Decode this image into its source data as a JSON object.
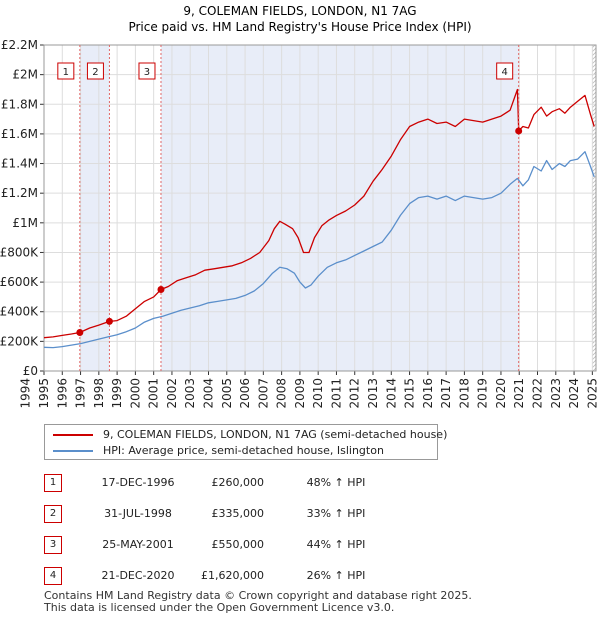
{
  "chart_data": {
    "type": "line",
    "title": "9, COLEMAN FIELDS, LONDON, N1 7AG",
    "subtitle": "Price paid vs. HM Land Registry's House Price Index (HPI)",
    "xlim": [
      1995.0,
      2025.2
    ],
    "ylim": [
      0,
      2200000
    ],
    "x_ticks": [
      "1994",
      "1995",
      "1996",
      "1997",
      "1998",
      "1999",
      "2000",
      "2001",
      "2002",
      "2003",
      "2004",
      "2005",
      "2006",
      "2007",
      "2008",
      "2009",
      "2010",
      "2011",
      "2012",
      "2013",
      "2014",
      "2015",
      "2016",
      "2017",
      "2018",
      "2019",
      "2020",
      "2021",
      "2022",
      "2023",
      "2024",
      "2025"
    ],
    "y_ticks": [
      {
        "v": 0,
        "label": "£0"
      },
      {
        "v": 200000,
        "label": "£200K"
      },
      {
        "v": 400000,
        "label": "£400K"
      },
      {
        "v": 600000,
        "label": "£600K"
      },
      {
        "v": 800000,
        "label": "£800K"
      },
      {
        "v": 1000000,
        "label": "£1M"
      },
      {
        "v": 1200000,
        "label": "£1.2M"
      },
      {
        "v": 1400000,
        "label": "£1.4M"
      },
      {
        "v": 1600000,
        "label": "£1.6M"
      },
      {
        "v": 1800000,
        "label": "£1.8M"
      },
      {
        "v": 2000000,
        "label": "£2M"
      },
      {
        "v": 2200000,
        "label": "£2.2M"
      }
    ],
    "shaded_regions": [
      [
        1996.96,
        1998.58
      ],
      [
        2001.4,
        2020.97
      ]
    ],
    "hatch_from": 2025.0,
    "series": [
      {
        "name": "9, COLEMAN FIELDS, LONDON, N1 7AG (semi-detached house)",
        "color": "#cc0000",
        "x": [
          1995.0,
          1995.5,
          1996.0,
          1996.5,
          1996.96,
          1997.5,
          1998.0,
          1998.58,
          1999.0,
          1999.5,
          2000.0,
          2000.5,
          2001.0,
          2001.4,
          2001.8,
          2002.3,
          2002.8,
          2003.3,
          2003.8,
          2004.3,
          2004.8,
          2005.3,
          2005.8,
          2006.3,
          2006.8,
          2007.3,
          2007.6,
          2007.9,
          2008.2,
          2008.6,
          2008.9,
          2009.2,
          2009.5,
          2009.8,
          2010.2,
          2010.6,
          2011.0,
          2011.5,
          2012.0,
          2012.5,
          2013.0,
          2013.5,
          2014.0,
          2014.5,
          2015.0,
          2015.5,
          2016.0,
          2016.5,
          2017.0,
          2017.5,
          2018.0,
          2018.5,
          2019.0,
          2019.5,
          2020.0,
          2020.5,
          2020.9,
          2020.97,
          2021.2,
          2021.5,
          2021.8,
          2022.2,
          2022.5,
          2022.8,
          2023.2,
          2023.5,
          2023.8,
          2024.2,
          2024.6,
          2024.9,
          2025.1
        ],
        "y": [
          225000,
          230000,
          240000,
          250000,
          260000,
          290000,
          310000,
          335000,
          340000,
          370000,
          420000,
          470000,
          500000,
          550000,
          570000,
          610000,
          630000,
          650000,
          680000,
          690000,
          700000,
          710000,
          730000,
          760000,
          800000,
          880000,
          960000,
          1010000,
          990000,
          960000,
          900000,
          800000,
          800000,
          900000,
          980000,
          1020000,
          1050000,
          1080000,
          1120000,
          1180000,
          1280000,
          1360000,
          1450000,
          1560000,
          1650000,
          1680000,
          1700000,
          1670000,
          1680000,
          1650000,
          1700000,
          1690000,
          1680000,
          1700000,
          1720000,
          1760000,
          1900000,
          1620000,
          1650000,
          1640000,
          1730000,
          1780000,
          1720000,
          1750000,
          1770000,
          1740000,
          1780000,
          1820000,
          1860000,
          1730000,
          1650000
        ]
      },
      {
        "name": "HPI: Average price, semi-detached house, Islington",
        "color": "#5b8fcb",
        "x": [
          1995.0,
          1995.5,
          1996.0,
          1996.5,
          1997.0,
          1997.5,
          1998.0,
          1998.5,
          1999.0,
          1999.5,
          2000.0,
          2000.5,
          2001.0,
          2001.5,
          2002.0,
          2002.5,
          2003.0,
          2003.5,
          2004.0,
          2004.5,
          2005.0,
          2005.5,
          2006.0,
          2006.5,
          2007.0,
          2007.5,
          2007.9,
          2008.3,
          2008.7,
          2009.0,
          2009.3,
          2009.6,
          2010.0,
          2010.5,
          2011.0,
          2011.5,
          2012.0,
          2012.5,
          2013.0,
          2013.5,
          2014.0,
          2014.5,
          2015.0,
          2015.5,
          2016.0,
          2016.5,
          2017.0,
          2017.5,
          2018.0,
          2018.5,
          2019.0,
          2019.5,
          2020.0,
          2020.5,
          2020.9,
          2021.2,
          2021.5,
          2021.8,
          2022.2,
          2022.5,
          2022.8,
          2023.2,
          2023.5,
          2023.8,
          2024.2,
          2024.6,
          2024.9,
          2025.1
        ],
        "y": [
          160000,
          158000,
          165000,
          175000,
          185000,
          200000,
          215000,
          230000,
          245000,
          265000,
          290000,
          330000,
          355000,
          370000,
          390000,
          410000,
          425000,
          440000,
          460000,
          470000,
          480000,
          490000,
          510000,
          540000,
          590000,
          660000,
          700000,
          690000,
          660000,
          600000,
          560000,
          580000,
          640000,
          700000,
          730000,
          750000,
          780000,
          810000,
          840000,
          870000,
          950000,
          1050000,
          1130000,
          1170000,
          1180000,
          1160000,
          1180000,
          1150000,
          1180000,
          1170000,
          1160000,
          1170000,
          1200000,
          1260000,
          1300000,
          1250000,
          1290000,
          1380000,
          1350000,
          1420000,
          1360000,
          1400000,
          1380000,
          1420000,
          1430000,
          1480000,
          1380000,
          1310000
        ]
      }
    ],
    "transactions": [
      {
        "label": "1",
        "x": 1996.96,
        "y": 260000
      },
      {
        "label": "2",
        "x": 1998.58,
        "y": 335000
      },
      {
        "label": "3",
        "x": 2001.4,
        "y": 550000
      },
      {
        "label": "4",
        "x": 2020.97,
        "y": 1620000
      }
    ]
  },
  "legend": {
    "property_label": "9, COLEMAN FIELDS, LONDON, N1 7AG (semi-detached house)",
    "hpi_label": "HPI: Average price, semi-detached house, Islington"
  },
  "table": [
    {
      "num": "1",
      "date": "17-DEC-1996",
      "price": "£260,000",
      "hpi": "48% ↑ HPI"
    },
    {
      "num": "2",
      "date": "31-JUL-1998",
      "price": "£335,000",
      "hpi": "33% ↑ HPI"
    },
    {
      "num": "3",
      "date": "25-MAY-2001",
      "price": "£550,000",
      "hpi": "44% ↑ HPI"
    },
    {
      "num": "4",
      "date": "21-DEC-2020",
      "price": "£1,620,000",
      "hpi": "26% ↑ HPI"
    }
  ],
  "footer": {
    "line1": "Contains HM Land Registry data © Crown copyright and database right 2025.",
    "line2": "This data is licensed under the Open Government Licence v3.0."
  }
}
